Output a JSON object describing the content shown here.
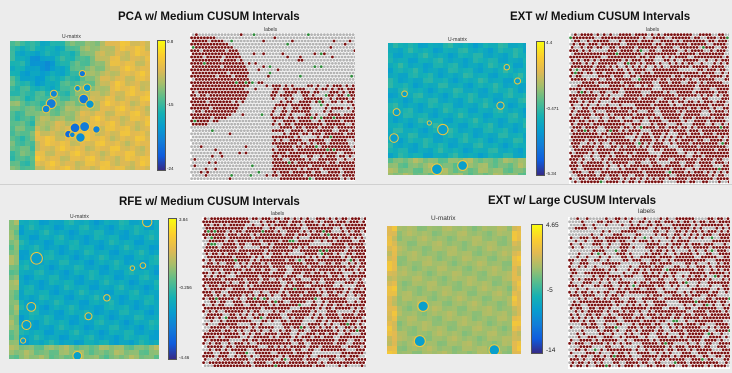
{
  "panels": [
    {
      "title": "PCA  w/ Medium CUSUM Intervals",
      "umatrix_label": "U-matrix",
      "labels_label": "labels",
      "colorbar_ticks": [
        "0.8",
        "-15",
        "-24"
      ],
      "umatrix_style": "pca",
      "labels_style": "pca"
    },
    {
      "title": "EXT  w/ Medium CUSUM Intervals",
      "umatrix_label": "U-matrix",
      "labels_label": "labels",
      "colorbar_ticks": [
        "4.4",
        "-0.471",
        "-5.34"
      ],
      "umatrix_style": "ext_medium",
      "labels_style": "mostly_red"
    },
    {
      "title": "RFE  w/ Medium CUSUM Intervals",
      "umatrix_label": "U-matrix",
      "labels_label": "labels",
      "colorbar_ticks": [
        "3.84",
        "-0.256",
        "-4.46"
      ],
      "umatrix_style": "rfe",
      "labels_style": "mostly_red"
    },
    {
      "title": "EXT  w/ Large CUSUM Intervals",
      "umatrix_label": "U-matrix",
      "labels_label": "labels",
      "colorbar_ticks": [
        "4.65",
        "-5",
        "-14"
      ],
      "umatrix_style": "ext_large",
      "labels_style": "mixed"
    }
  ],
  "colors": {
    "label_red": "#7a1010",
    "label_gray": "#b4b4b4",
    "label_green": "#2e8b3a",
    "parula_low": "#352a87",
    "parula_mid": "#0ea5c9",
    "parula_high": "#f9fb0e"
  }
}
